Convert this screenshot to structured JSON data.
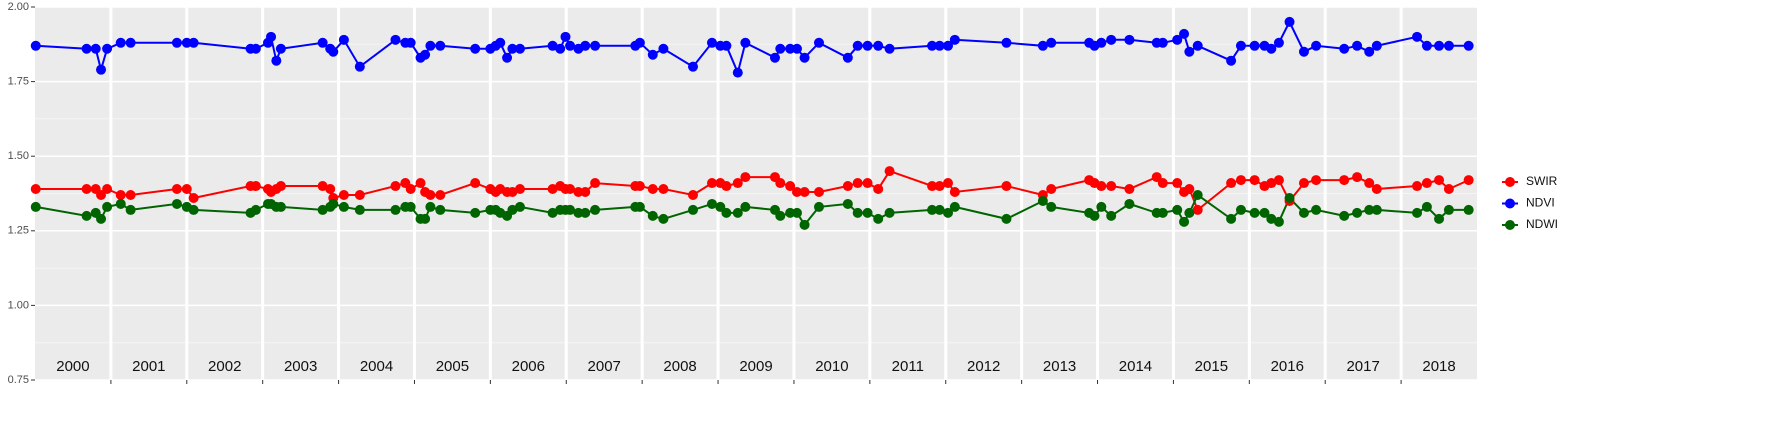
{
  "chart_data": {
    "type": "line",
    "x": [
      2000.01,
      2000.68,
      2000.8,
      2000.87,
      2000.95,
      2001.13,
      2001.26,
      2001.87,
      2002.0,
      2002.09,
      2002.84,
      2002.91,
      2003.07,
      2003.11,
      2003.18,
      2003.24,
      2003.79,
      2003.89,
      2003.93,
      2004.07,
      2004.28,
      2004.75,
      2004.88,
      2004.95,
      2005.08,
      2005.14,
      2005.21,
      2005.34,
      2005.8,
      2006.0,
      2006.07,
      2006.13,
      2006.22,
      2006.29,
      2006.39,
      2006.82,
      2006.92,
      2006.99,
      2007.05,
      2007.16,
      2007.25,
      2007.38,
      2007.91,
      2007.97,
      2008.14,
      2008.28,
      2008.67,
      2008.92,
      2009.03,
      2009.11,
      2009.26,
      2009.36,
      2009.75,
      2009.82,
      2009.95,
      2010.04,
      2010.14,
      2010.33,
      2010.71,
      2010.84,
      2010.97,
      2011.11,
      2011.26,
      2011.82,
      2011.92,
      2012.03,
      2012.12,
      2012.8,
      2013.28,
      2013.39,
      2013.89,
      2013.96,
      2014.05,
      2014.18,
      2014.42,
      2014.78,
      2014.86,
      2015.05,
      2015.14,
      2015.21,
      2015.32,
      2015.76,
      2015.89,
      2016.07,
      2016.2,
      2016.29,
      2016.39,
      2016.53,
      2016.72,
      2016.88,
      2017.25,
      2017.42,
      2017.58,
      2017.68,
      2018.21,
      2018.34,
      2018.5,
      2018.63,
      2018.89
    ],
    "series": [
      {
        "name": "SWIR",
        "color": "#ff0000",
        "values": [
          1.39,
          1.39,
          1.39,
          1.37,
          1.39,
          1.37,
          1.37,
          1.39,
          1.39,
          1.36,
          1.4,
          1.4,
          1.39,
          1.38,
          1.39,
          1.4,
          1.4,
          1.39,
          1.36,
          1.37,
          1.37,
          1.4,
          1.41,
          1.39,
          1.41,
          1.38,
          1.37,
          1.37,
          1.41,
          1.39,
          1.38,
          1.39,
          1.38,
          1.38,
          1.39,
          1.39,
          1.4,
          1.39,
          1.39,
          1.38,
          1.38,
          1.41,
          1.4,
          1.4,
          1.39,
          1.39,
          1.37,
          1.41,
          1.41,
          1.4,
          1.41,
          1.43,
          1.43,
          1.41,
          1.4,
          1.38,
          1.38,
          1.38,
          1.4,
          1.41,
          1.41,
          1.39,
          1.45,
          1.4,
          1.4,
          1.41,
          1.38,
          1.4,
          1.37,
          1.39,
          1.42,
          1.41,
          1.4,
          1.4,
          1.39,
          1.43,
          1.41,
          1.41,
          1.38,
          1.39,
          1.32,
          1.41,
          1.42,
          1.42,
          1.4,
          1.41,
          1.42,
          1.35,
          1.41,
          1.42,
          1.42,
          1.43,
          1.41,
          1.39,
          1.4,
          1.41,
          1.42,
          1.39,
          1.42
        ]
      },
      {
        "name": "NDVI",
        "color": "#0000ff",
        "values": [
          1.87,
          1.86,
          1.86,
          1.79,
          1.86,
          1.88,
          1.88,
          1.88,
          1.88,
          1.88,
          1.86,
          1.86,
          1.88,
          1.9,
          1.82,
          1.86,
          1.88,
          1.86,
          1.85,
          1.89,
          1.8,
          1.89,
          1.88,
          1.88,
          1.83,
          1.84,
          1.87,
          1.87,
          1.86,
          1.86,
          1.87,
          1.88,
          1.83,
          1.86,
          1.86,
          1.87,
          1.86,
          1.9,
          1.87,
          1.86,
          1.87,
          1.87,
          1.87,
          1.88,
          1.84,
          1.86,
          1.8,
          1.88,
          1.87,
          1.87,
          1.78,
          1.88,
          1.83,
          1.86,
          1.86,
          1.86,
          1.83,
          1.88,
          1.83,
          1.87,
          1.87,
          1.87,
          1.86,
          1.87,
          1.87,
          1.87,
          1.89,
          1.88,
          1.87,
          1.88,
          1.88,
          1.87,
          1.88,
          1.89,
          1.89,
          1.88,
          1.88,
          1.89,
          1.91,
          1.85,
          1.87,
          1.82,
          1.87,
          1.87,
          1.87,
          1.86,
          1.88,
          1.95,
          1.85,
          1.87,
          1.86,
          1.87,
          1.85,
          1.87,
          1.9,
          1.87,
          1.87,
          1.87,
          1.87
        ]
      },
      {
        "name": "NDWI",
        "color": "#006400",
        "values": [
          1.33,
          1.3,
          1.31,
          1.29,
          1.33,
          1.34,
          1.32,
          1.34,
          1.33,
          1.32,
          1.31,
          1.32,
          1.34,
          1.34,
          1.33,
          1.33,
          1.32,
          1.33,
          1.34,
          1.33,
          1.32,
          1.32,
          1.33,
          1.33,
          1.29,
          1.29,
          1.33,
          1.32,
          1.31,
          1.32,
          1.32,
          1.31,
          1.3,
          1.32,
          1.33,
          1.31,
          1.32,
          1.32,
          1.32,
          1.31,
          1.31,
          1.32,
          1.33,
          1.33,
          1.3,
          1.29,
          1.32,
          1.34,
          1.33,
          1.31,
          1.31,
          1.33,
          1.32,
          1.3,
          1.31,
          1.31,
          1.27,
          1.33,
          1.34,
          1.31,
          1.31,
          1.29,
          1.31,
          1.32,
          1.32,
          1.31,
          1.33,
          1.29,
          1.35,
          1.33,
          1.31,
          1.3,
          1.33,
          1.3,
          1.34,
          1.31,
          1.31,
          1.32,
          1.28,
          1.31,
          1.37,
          1.29,
          1.32,
          1.31,
          1.31,
          1.29,
          1.28,
          1.36,
          1.31,
          1.32,
          1.3,
          1.31,
          1.32,
          1.32,
          1.31,
          1.33,
          1.29,
          1.32,
          1.32
        ]
      }
    ],
    "xlim": [
      2000,
      2019
    ],
    "xticks": [
      2001,
      2002,
      2003,
      2004,
      2005,
      2006,
      2007,
      2008,
      2009,
      2010,
      2011,
      2012,
      2013,
      2014,
      2015,
      2016,
      2017,
      2018
    ],
    "year_labels": [
      2000,
      2001,
      2002,
      2003,
      2004,
      2005,
      2006,
      2007,
      2008,
      2009,
      2010,
      2011,
      2012,
      2013,
      2014,
      2015,
      2016,
      2017,
      2018
    ],
    "ylim": [
      0.75,
      2.0
    ],
    "yticks": [
      {
        "value": 0.75,
        "label": "0.75"
      },
      {
        "value": 1.0,
        "label": "1.00"
      },
      {
        "value": 1.25,
        "label": "1.25"
      },
      {
        "value": 1.5,
        "label": "1.50"
      },
      {
        "value": 1.75,
        "label": "1.75"
      },
      {
        "value": 2.0,
        "label": "2.00"
      }
    ],
    "grid": true,
    "legend": "right"
  }
}
